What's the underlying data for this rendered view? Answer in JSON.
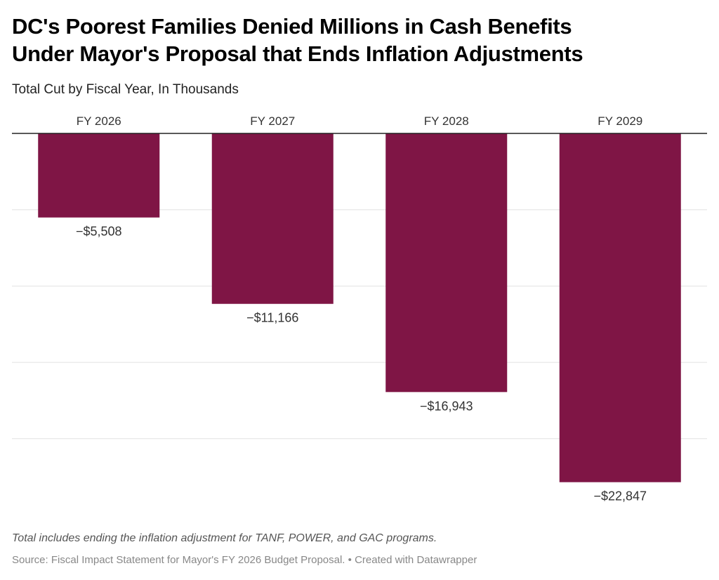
{
  "header": {
    "title_line1": "DC's Poorest Families Denied Millions in Cash Benefits",
    "title_line2": "Under Mayor's Proposal that Ends Inflation Adjustments",
    "subtitle": "Total Cut by Fiscal Year, In Thousands"
  },
  "chart_data": {
    "type": "bar",
    "orientation": "vertical",
    "categories": [
      "FY 2026",
      "FY 2027",
      "FY 2028",
      "FY 2029"
    ],
    "values": [
      -5508,
      -11166,
      -16943,
      -22847
    ],
    "data_labels": [
      "−$5,508",
      "−$11,166",
      "−$16,943",
      "−$22,847"
    ],
    "ylim": [
      -25000,
      0
    ],
    "gridlines": [
      0,
      -5000,
      -10000,
      -15000,
      -20000
    ],
    "grid": true,
    "category_labels_position": "top",
    "bar_color": "#7f1545"
  },
  "footer": {
    "notes": "Total includes ending the inflation adjustment for TANF, POWER, and GAC programs.",
    "source": "Source: Fiscal Impact Statement for Mayor's FY 2026 Budget Proposal. • Created with Datawrapper"
  }
}
